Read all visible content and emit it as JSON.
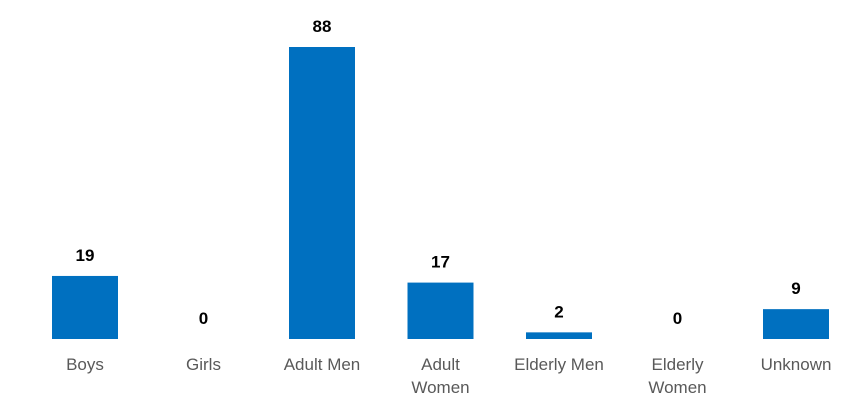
{
  "chart_data": {
    "type": "bar",
    "categories": [
      "Boys",
      "Girls",
      "Adult Men",
      "Adult Women",
      "Elderly Men",
      "Elderly Women",
      "Unknown"
    ],
    "category_lines": [
      [
        "Boys"
      ],
      [
        "Girls"
      ],
      [
        "Adult Men"
      ],
      [
        "Adult",
        "Women"
      ],
      [
        "Elderly Men"
      ],
      [
        "Elderly",
        "Women"
      ],
      [
        "Unknown"
      ]
    ],
    "values": [
      19,
      0,
      88,
      17,
      2,
      0,
      9
    ],
    "title": "",
    "xlabel": "",
    "ylabel": "",
    "ylim": [
      0,
      88
    ],
    "grid": false,
    "legend": "none",
    "data_labels": true,
    "bar_color": "#0070c0"
  }
}
